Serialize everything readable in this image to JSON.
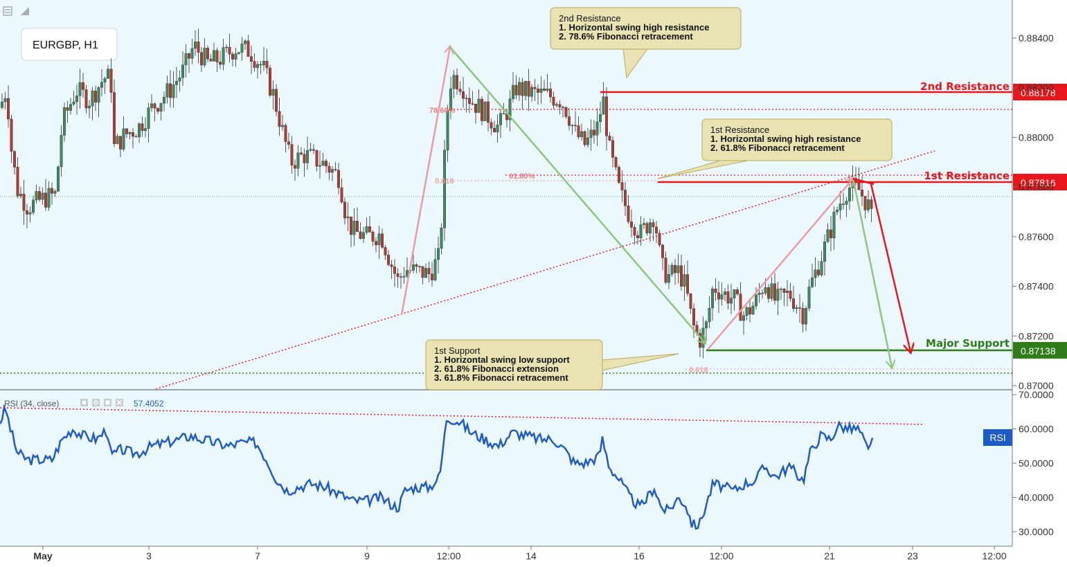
{
  "toolbar": {
    "collapse_icon": "collapse-icon",
    "expand_icon": "expand-icon"
  },
  "symbol_label": "EURGBP, H1",
  "colors": {
    "background": "#ebf8fd",
    "up_candle": "#3d8a5d",
    "down_candle": "#b23b2e",
    "resistance": "#e8161b",
    "support": "#2e7d1a",
    "rsi_line": "#1f5bc7",
    "annotation_fill": "#e9e3b4",
    "pink_arrow": "#ef9aa0",
    "green_arrow": "#8cc77a"
  },
  "chart_data": [
    {
      "type": "candlestick",
      "title": "EURGBP, H1",
      "ylim": [
        0.8695,
        0.8845
      ],
      "y_ticks": [
        "0.88400",
        "0.88200",
        "0.88000",
        "0.87800",
        "0.87600",
        "0.87400",
        "0.87200",
        "0.87000"
      ],
      "x_ticks": [
        "May",
        "3",
        "7",
        "9",
        "12:00",
        "14",
        "16",
        "12:00",
        "21",
        "23",
        "12:00"
      ],
      "price_path": [
        [
          0,
          0.8812
        ],
        [
          10,
          0.882
        ],
        [
          15,
          0.8798
        ],
        [
          25,
          0.8779
        ],
        [
          40,
          0.8772
        ],
        [
          60,
          0.8775
        ],
        [
          80,
          0.8777
        ],
        [
          90,
          0.8806
        ],
        [
          110,
          0.8819
        ],
        [
          130,
          0.8815
        ],
        [
          150,
          0.8824
        ],
        [
          160,
          0.8824
        ],
        [
          165,
          0.8796
        ],
        [
          180,
          0.8801
        ],
        [
          200,
          0.8804
        ],
        [
          220,
          0.8812
        ],
        [
          245,
          0.8819
        ],
        [
          265,
          0.8827
        ],
        [
          280,
          0.8837
        ],
        [
          300,
          0.883
        ],
        [
          320,
          0.8832
        ],
        [
          340,
          0.8836
        ],
        [
          360,
          0.8835
        ],
        [
          380,
          0.8828
        ],
        [
          395,
          0.8817
        ],
        [
          410,
          0.88
        ],
        [
          420,
          0.879
        ],
        [
          440,
          0.8793
        ],
        [
          470,
          0.8789
        ],
        [
          490,
          0.8784
        ],
        [
          500,
          0.8768
        ],
        [
          510,
          0.8762
        ],
        [
          530,
          0.876
        ],
        [
          550,
          0.8761
        ],
        [
          565,
          0.8749
        ],
        [
          575,
          0.8742
        ],
        [
          585,
          0.8747
        ],
        [
          600,
          0.8746
        ],
        [
          620,
          0.8745
        ],
        [
          635,
          0.8752
        ],
        [
          645,
          0.8808
        ],
        [
          652,
          0.8825
        ],
        [
          665,
          0.8822
        ],
        [
          680,
          0.8815
        ],
        [
          700,
          0.881
        ],
        [
          720,
          0.8804
        ],
        [
          735,
          0.8812
        ],
        [
          745,
          0.882
        ],
        [
          765,
          0.8818
        ],
        [
          790,
          0.8817
        ],
        [
          810,
          0.8815
        ],
        [
          820,
          0.881
        ],
        [
          830,
          0.8802
        ],
        [
          845,
          0.8797
        ],
        [
          865,
          0.8805
        ],
        [
          870,
          0.8818
        ],
        [
          880,
          0.8795
        ],
        [
          895,
          0.8778
        ],
        [
          910,
          0.8768
        ],
        [
          925,
          0.8761
        ],
        [
          945,
          0.8769
        ],
        [
          955,
          0.8748
        ],
        [
          965,
          0.8744
        ],
        [
          980,
          0.8746
        ],
        [
          990,
          0.874
        ],
        [
          1000,
          0.8725
        ],
        [
          1010,
          0.8718
        ],
        [
          1020,
          0.8724
        ],
        [
          1030,
          0.874
        ],
        [
          1045,
          0.8737
        ],
        [
          1060,
          0.8735
        ],
        [
          1075,
          0.8728
        ],
        [
          1090,
          0.8733
        ],
        [
          1105,
          0.8742
        ],
        [
          1120,
          0.8734
        ],
        [
          1140,
          0.8737
        ],
        [
          1160,
          0.8729
        ],
        [
          1170,
          0.874
        ],
        [
          1185,
          0.8751
        ],
        [
          1200,
          0.8763
        ],
        [
          1210,
          0.8772
        ],
        [
          1225,
          0.878
        ],
        [
          1240,
          0.8779
        ],
        [
          1255,
          0.8772
        ],
        [
          1260,
          0.8765
        ]
      ],
      "levels": [
        {
          "name": "2nd Resistance",
          "value": "0.88178",
          "type": "resistance"
        },
        {
          "name": "1st Resistance",
          "value": "0.87816",
          "type": "resistance"
        },
        {
          "name": "Major Support",
          "value": "0.87138",
          "type": "support"
        }
      ],
      "fib_labels": [
        {
          "text": "78.60%"
        },
        {
          "text": "61.80%"
        },
        {
          "text": "0.618"
        },
        {
          "text": "0.618"
        }
      ],
      "annotations": [
        {
          "lines": [
            "2nd Resistance",
            "1. Horizontal swing high resistance",
            "2. 78.6% Fibonacci retracement"
          ]
        },
        {
          "lines": [
            "1st Resistance",
            "1. Horizontal swing high resistance",
            "2. 61.8% Fibonacci retracement"
          ]
        },
        {
          "lines": [
            "1st Support",
            "1. Horizontal swing low support",
            "2. 61.8% Fibonacci extension",
            "3. 61.8% Fibonacci retracement"
          ]
        }
      ]
    },
    {
      "type": "line",
      "title": "RSI (34, close)",
      "current_value": "57.4052",
      "badge": "RSI",
      "ylim": [
        26,
        71
      ],
      "y_ticks": [
        "70.0000",
        "60.0000",
        "50.0000",
        "40.0000",
        "30.0000"
      ],
      "series": [
        {
          "name": "RSI",
          "values": [
            [
              0,
              62
            ],
            [
              8,
              66
            ],
            [
              15,
              60
            ],
            [
              25,
              53
            ],
            [
              40,
              51
            ],
            [
              60,
              51
            ],
            [
              75,
              51
            ],
            [
              90,
              57
            ],
            [
              105,
              60
            ],
            [
              120,
              58
            ],
            [
              140,
              57
            ],
            [
              155,
              60
            ],
            [
              160,
              52
            ],
            [
              175,
              54
            ],
            [
              190,
              53
            ],
            [
              200,
              53
            ],
            [
              220,
              55
            ],
            [
              240,
              56
            ],
            [
              260,
              57
            ],
            [
              275,
              58
            ],
            [
              290,
              57
            ],
            [
              310,
              56
            ],
            [
              330,
              55
            ],
            [
              350,
              56
            ],
            [
              370,
              56
            ],
            [
              385,
              51
            ],
            [
              400,
              45
            ],
            [
              415,
              42
            ],
            [
              430,
              43
            ],
            [
              450,
              44
            ],
            [
              470,
              43
            ],
            [
              490,
              41
            ],
            [
              510,
              39
            ],
            [
              530,
              39
            ],
            [
              550,
              40
            ],
            [
              565,
              38
            ],
            [
              575,
              37
            ],
            [
              585,
              42
            ],
            [
              600,
              43
            ],
            [
              620,
              43
            ],
            [
              635,
              46
            ],
            [
              645,
              63
            ],
            [
              652,
              63
            ],
            [
              665,
              62
            ],
            [
              680,
              59
            ],
            [
              700,
              57
            ],
            [
              720,
              55
            ],
            [
              740,
              59
            ],
            [
              760,
              58
            ],
            [
              780,
              57
            ],
            [
              800,
              57
            ],
            [
              815,
              54
            ],
            [
              830,
              50
            ],
            [
              845,
              50
            ],
            [
              865,
              52
            ],
            [
              870,
              57
            ],
            [
              880,
              49
            ],
            [
              895,
              45
            ],
            [
              910,
              40
            ],
            [
              925,
              37
            ],
            [
              945,
              43
            ],
            [
              955,
              37
            ],
            [
              965,
              36
            ],
            [
              980,
              40
            ],
            [
              990,
              38
            ],
            [
              1000,
              32
            ],
            [
              1010,
              32
            ],
            [
              1020,
              38
            ],
            [
              1030,
              44
            ],
            [
              1045,
              43
            ],
            [
              1060,
              42
            ],
            [
              1075,
              44
            ],
            [
              1090,
              45
            ],
            [
              1105,
              49
            ],
            [
              1120,
              46
            ],
            [
              1140,
              49
            ],
            [
              1160,
              45
            ],
            [
              1170,
              53
            ],
            [
              1185,
              58
            ],
            [
              1200,
              57
            ],
            [
              1210,
              61
            ],
            [
              1225,
              60
            ],
            [
              1240,
              60
            ],
            [
              1255,
              53
            ],
            [
              1260,
              57.4
            ]
          ]
        }
      ]
    }
  ]
}
